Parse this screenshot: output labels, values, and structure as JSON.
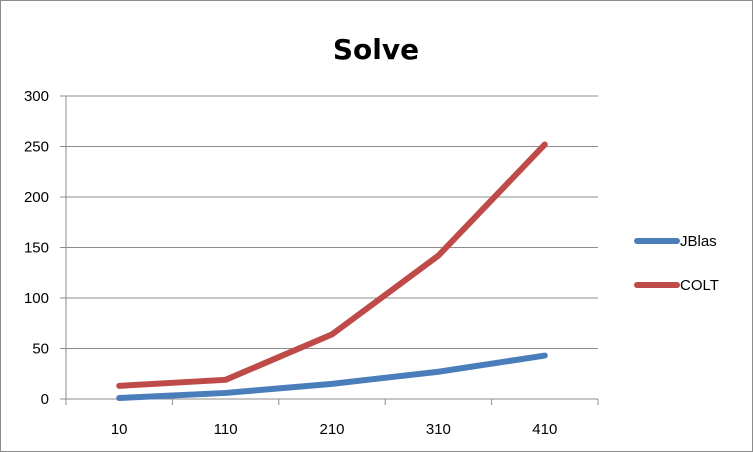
{
  "chart_data": {
    "type": "line",
    "title": "Solve",
    "xlabel": "",
    "ylabel": "",
    "categories": [
      "10",
      "110",
      "210",
      "310",
      "410"
    ],
    "ylim": [
      0,
      300
    ],
    "yticks": [
      0,
      50,
      100,
      150,
      200,
      250,
      300
    ],
    "grid": true,
    "legend_position": "right",
    "series": [
      {
        "name": "JBlas",
        "values": [
          1,
          6,
          15,
          27,
          43
        ],
        "color": "#4a7ebb"
      },
      {
        "name": "COLT",
        "values": [
          13,
          19,
          64,
          142,
          252
        ],
        "color": "#be4b48"
      }
    ]
  }
}
